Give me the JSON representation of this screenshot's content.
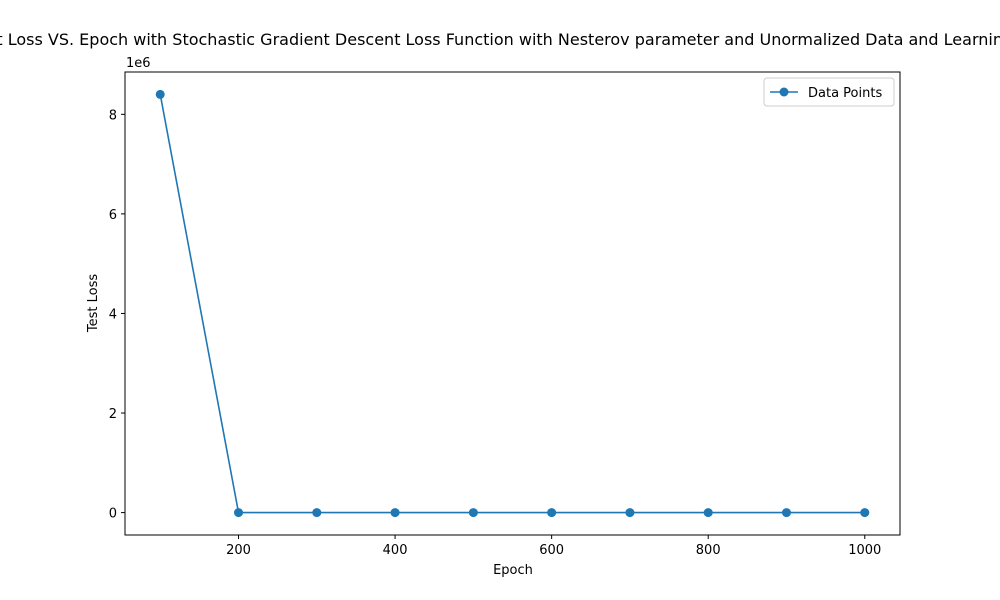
{
  "chart_data": {
    "type": "line",
    "title": "Test Loss VS. Epoch with Stochastic Gradient Descent Loss Function with Nesterov parameter and Unormalized Data and Learning Rate",
    "xlabel": "Epoch",
    "ylabel": "Test Loss",
    "y_offset_label": "1e6",
    "x_ticks": [
      200,
      400,
      600,
      800,
      1000
    ],
    "y_ticks": [
      0,
      2,
      4,
      6,
      8
    ],
    "xlim": [
      55,
      1045
    ],
    "ylim": [
      -0.45,
      8.85
    ],
    "grid": false,
    "legend_position": "top-right",
    "series": [
      {
        "name": "Data Points",
        "color": "#1f77b4",
        "marker": "circle",
        "x": [
          100,
          200,
          300,
          400,
          500,
          600,
          700,
          800,
          900,
          1000
        ],
        "y": [
          8.4,
          0.0003,
          0.0002,
          0.0001,
          0.0001,
          0.0001,
          0.0001,
          0.0001,
          0.0001,
          0.0001
        ]
      }
    ]
  }
}
